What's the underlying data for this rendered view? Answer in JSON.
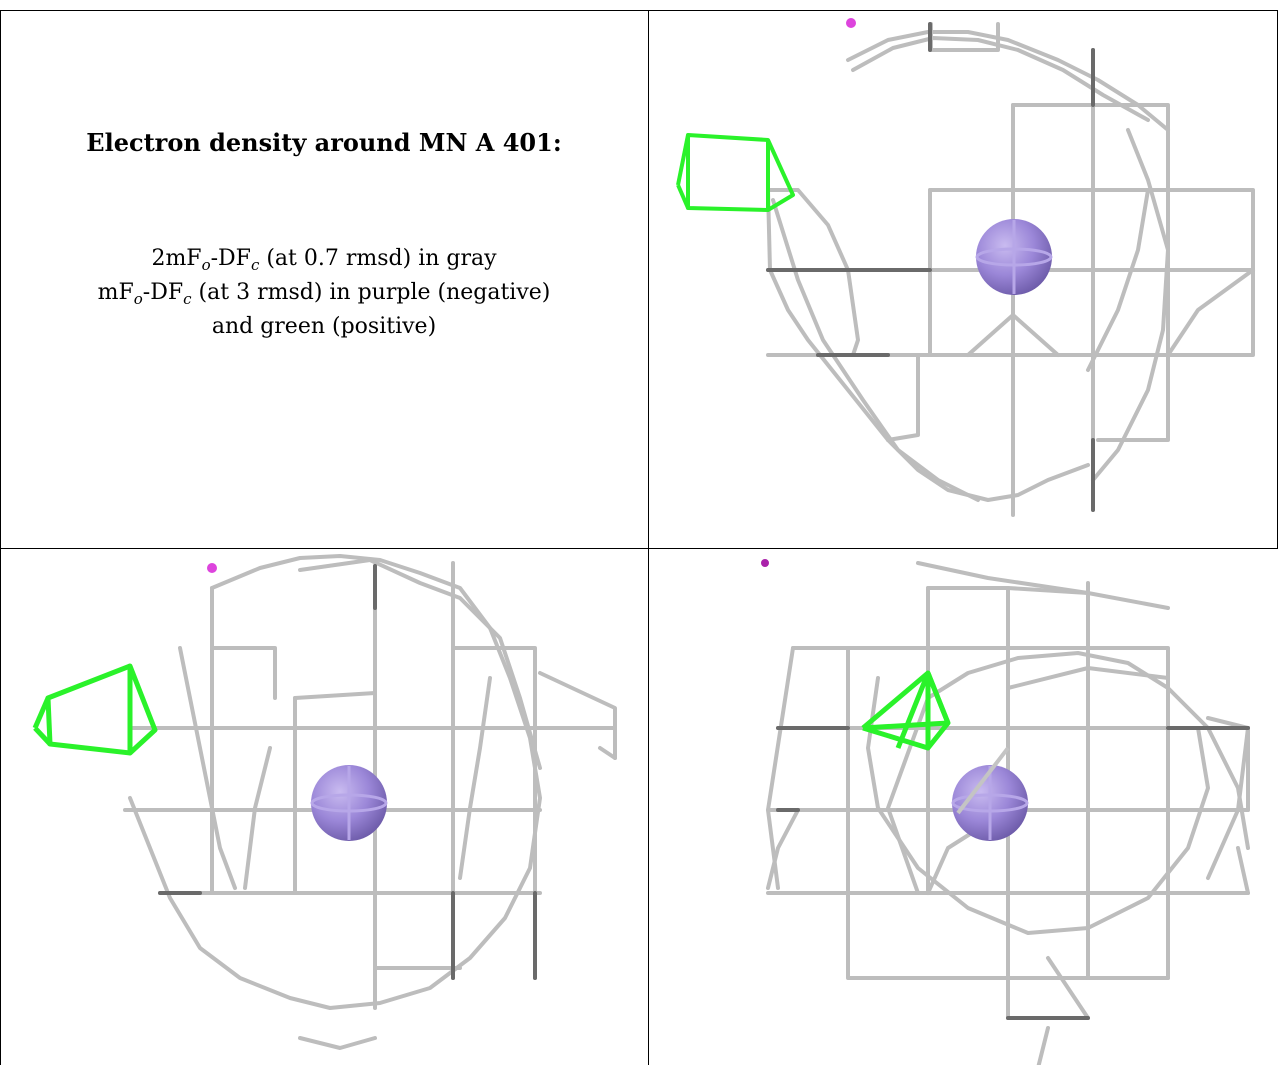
{
  "caption": {
    "title": "Electron density around MN A 401:",
    "line1_prefix": "2mF",
    "line1_sub1": "o",
    "line1_mid": "-DF",
    "line1_sub2": "c",
    "line1_suffix": " (at 0.7 rmsd) in gray",
    "line2_prefix": "mF",
    "line2_sub1": "o",
    "line2_mid": "-DF",
    "line2_sub2": "c",
    "line2_suffix": " (at 3 rmsd) in purple (negative)",
    "line3": "and green (positive)"
  },
  "colors": {
    "gray_mesh": "#b9b9b9",
    "dark_mesh": "#555555",
    "green_mesh": "#22ee22",
    "purple_blob": "#dd44dd",
    "ion": "#9b87d8"
  },
  "panels": [
    {
      "name": "view-1",
      "ion": "MN"
    },
    {
      "name": "view-2",
      "ion": "MN"
    },
    {
      "name": "view-3",
      "ion": "MN"
    }
  ]
}
